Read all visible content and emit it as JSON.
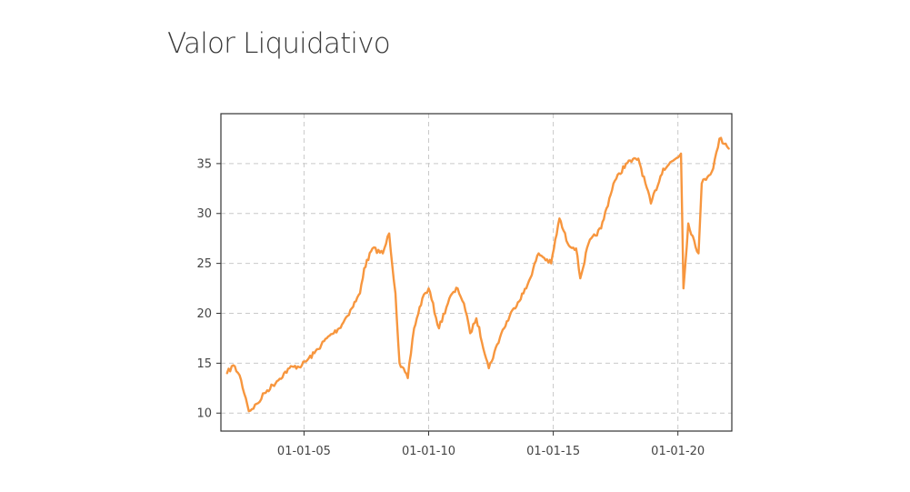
{
  "chart_data": {
    "type": "line",
    "title": "Valor Liquidativo",
    "xlabel": "",
    "ylabel": "",
    "x_ticks": [
      "01-01-05",
      "01-01-10",
      "01-01-15",
      "01-01-20"
    ],
    "y_ticks": [
      10,
      15,
      20,
      25,
      30,
      35
    ],
    "xlim": [
      "2001-09-01",
      "2022-03-01"
    ],
    "ylim": [
      8.2,
      40.0
    ],
    "grid": true,
    "line_color": "#f7963e",
    "series": [
      {
        "x": [
          "2001-12-01",
          "2002-03-01",
          "2002-06-01",
          "2002-09-01",
          "2002-10-15",
          "2003-03-01",
          "2003-06-01",
          "2003-12-01",
          "2004-06-01",
          "2004-12-01",
          "2005-06-01",
          "2005-12-01",
          "2006-06-01",
          "2006-12-01",
          "2007-04-01",
          "2007-06-01",
          "2007-10-01",
          "2008-03-01",
          "2008-06-01",
          "2008-09-01",
          "2008-11-01",
          "2009-03-01",
          "2009-06-01",
          "2009-10-01",
          "2010-01-01",
          "2010-06-01",
          "2010-11-01",
          "2011-03-01",
          "2011-06-01",
          "2011-09-01",
          "2011-12-01",
          "2012-06-01",
          "2012-12-01",
          "2013-06-01",
          "2013-12-01",
          "2014-06-01",
          "2014-12-01",
          "2015-04-01",
          "2015-08-01",
          "2015-12-01",
          "2016-02-01",
          "2016-06-01",
          "2016-12-01",
          "2017-06-01",
          "2017-12-01",
          "2018-06-01",
          "2018-12-01",
          "2019-06-01",
          "2019-12-01",
          "2020-02-15",
          "2020-03-23",
          "2020-06-01",
          "2020-10-30",
          "2020-12-15",
          "2021-06-01",
          "2021-09-01",
          "2021-12-01",
          "2022-01-15"
        ],
        "values": [
          14.0,
          14.8,
          13.8,
          11.5,
          10.2,
          11.0,
          12.0,
          13.2,
          14.5,
          14.8,
          16.0,
          17.5,
          18.5,
          20.5,
          22.0,
          24.5,
          26.5,
          26.0,
          28.0,
          22.0,
          15.0,
          13.5,
          18.5,
          21.5,
          22.5,
          18.5,
          21.5,
          22.5,
          21.0,
          18.0,
          19.5,
          14.5,
          18.0,
          20.5,
          22.5,
          26.0,
          25.0,
          29.5,
          27.0,
          26.5,
          23.5,
          27.0,
          28.5,
          33.0,
          35.0,
          35.5,
          31.0,
          34.5,
          35.5,
          36.0,
          22.5,
          29.0,
          26.0,
          33.0,
          34.5,
          37.5,
          37.0,
          36.5
        ]
      }
    ]
  }
}
